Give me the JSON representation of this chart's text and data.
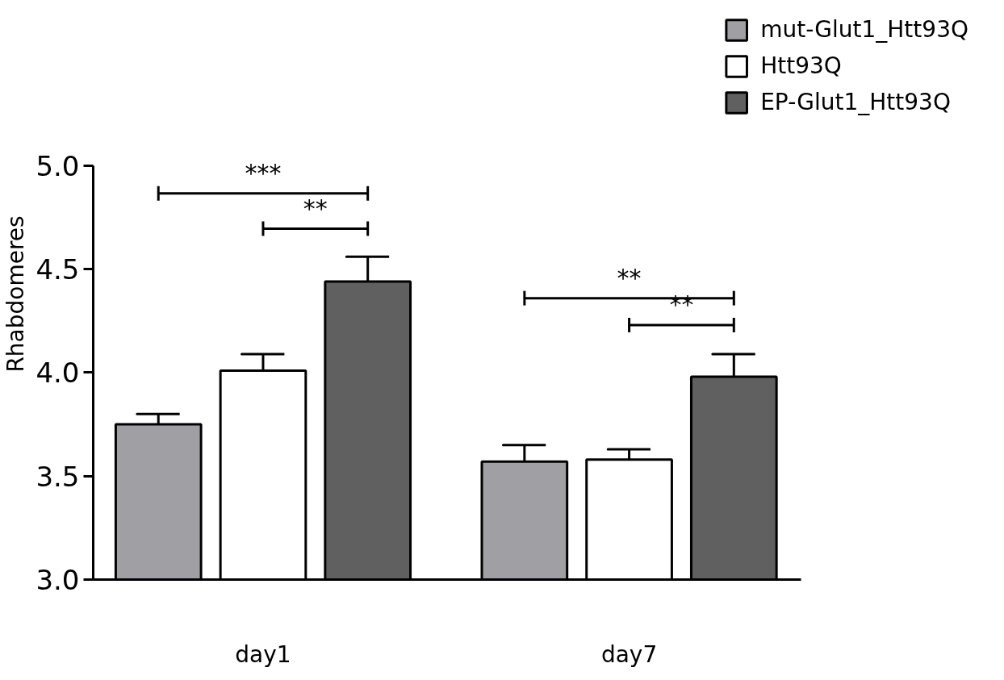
{
  "chart_data": {
    "type": "bar",
    "ylabel": "Rhabdomeres",
    "categories": [
      "day1",
      "day7"
    ],
    "series": [
      {
        "name": "mut-Glut1_Htt93Q",
        "color": "#a0a0a4",
        "values": [
          3.75,
          3.57
        ],
        "errors": [
          0.05,
          0.08
        ]
      },
      {
        "name": "Htt93Q",
        "color": "#ffffff",
        "values": [
          4.01,
          3.58
        ],
        "errors": [
          0.08,
          0.05
        ]
      },
      {
        "name": "EP-Glut1_Htt93Q",
        "color": "#606060",
        "values": [
          4.44,
          3.98
        ],
        "errors": [
          0.12,
          0.11
        ]
      }
    ],
    "ylim": [
      3,
      5
    ],
    "yticks": [
      {
        "value": 3,
        "label": "3.0"
      },
      {
        "value": 3.5,
        "label": "3.5"
      },
      {
        "value": 4,
        "label": "4.0"
      },
      {
        "value": 4.5,
        "label": "4.5"
      },
      {
        "value": 5,
        "label": "5.0"
      }
    ],
    "annotations": [
      "***",
      "**",
      "**",
      "**"
    ],
    "grid": false,
    "legend": "top right"
  }
}
